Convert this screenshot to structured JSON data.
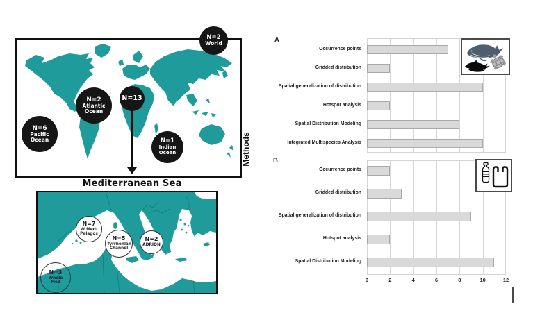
{
  "colors": {
    "map_teal": "#1F9B9B",
    "bubble_black": "#161616",
    "bar_fill": "#D9D9D9",
    "bar_border": "#A9A9A9"
  },
  "left_panel": {
    "methods_label": "Methods",
    "med_sea_label": "Mediterranean Sea",
    "world_map": {
      "bubbles": [
        {
          "n": "N=2",
          "region": "World"
        },
        {
          "n": "N=2",
          "region": "Atlantic Ocean"
        },
        {
          "n": "N=13",
          "region": ""
        },
        {
          "n": "N=6",
          "region": "Pacific Ocean"
        },
        {
          "n": "N=1",
          "region": "Indian Ocean"
        }
      ]
    },
    "med_map": {
      "bubbles": [
        {
          "n": "N=7",
          "region": "W Med- Pelagos"
        },
        {
          "n": "N=5",
          "region": "Tyrrhenian Channel"
        },
        {
          "n": "N=2",
          "region": "ADRION"
        },
        {
          "n": "N=3",
          "region": "Whole Med"
        }
      ]
    }
  },
  "chart_data": [
    {
      "type": "bar",
      "orientation": "horizontal",
      "panel": "A",
      "categories": [
        "Occurrence points",
        "Gridded distribution",
        "Spatial generalization of distribution",
        "Hotspot analysis",
        "Spatial Distribution Modeling",
        "Integrated Multispecies Analysis"
      ],
      "values": [
        7,
        2,
        10,
        2,
        8,
        10
      ],
      "xlim": [
        0,
        12
      ],
      "x_ticks": [
        "0",
        "2",
        "4",
        "6",
        "8",
        "10",
        "12"
      ],
      "gridlines": true,
      "icons": [
        "whale-icon",
        "dolphins-icon",
        "sea-turtle-icon"
      ]
    },
    {
      "type": "bar",
      "orientation": "horizontal",
      "panel": "B",
      "categories": [
        "Occurrence points",
        "Gridded distribution",
        "Spatial generalization of distribution",
        "Hotspot analysis",
        "Spatial Distribution Modeling"
      ],
      "values": [
        2,
        3,
        9,
        2,
        11
      ],
      "xlim": [
        0,
        12
      ],
      "x_ticks": [
        "0",
        "2",
        "4",
        "6",
        "8",
        "10",
        "12"
      ],
      "gridlines": true,
      "icons": [
        "plastic-bottle-icon",
        "plastic-bag-icon"
      ]
    }
  ]
}
